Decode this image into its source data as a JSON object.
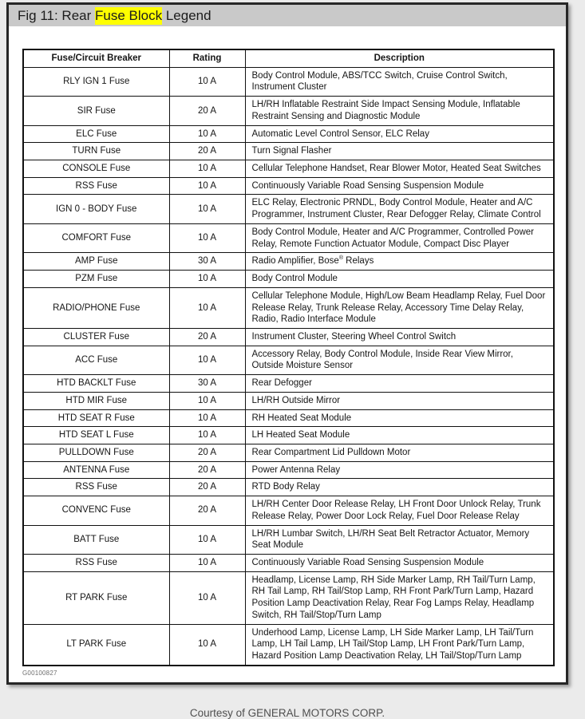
{
  "header": {
    "title_prefix": "Fig 11: Rear ",
    "title_highlight": "Fuse Block",
    "title_suffix": " Legend"
  },
  "table": {
    "columns": [
      "Fuse/Circuit Breaker",
      "Rating",
      "Description"
    ],
    "rows": [
      {
        "fuse": "RLY IGN 1 Fuse",
        "rating": "10 A",
        "description": "Body Control Module, ABS/TCC Switch, Cruise Control Switch, Instrument Cluster"
      },
      {
        "fuse": "SIR Fuse",
        "rating": "20 A",
        "description": "LH/RH Inflatable Restraint Side Impact Sensing Module, Inflatable Restraint Sensing and Diagnostic Module"
      },
      {
        "fuse": "ELC Fuse",
        "rating": "10 A",
        "description": "Automatic Level Control Sensor, ELC Relay"
      },
      {
        "fuse": "TURN Fuse",
        "rating": "20 A",
        "description": "Turn Signal Flasher"
      },
      {
        "fuse": "CONSOLE Fuse",
        "rating": "10 A",
        "description": "Cellular Telephone Handset, Rear Blower Motor, Heated Seat Switches"
      },
      {
        "fuse": "RSS Fuse",
        "rating": "10 A",
        "description": "Continuously Variable Road Sensing Suspension Module"
      },
      {
        "fuse": "IGN 0 - BODY Fuse",
        "rating": "10 A",
        "description": "ELC Relay, Electronic PRNDL, Body Control Module, Heater and A/C Programmer, Instrument Cluster, Rear Defogger Relay, Climate Control"
      },
      {
        "fuse": "COMFORT Fuse",
        "rating": "10 A",
        "description": "Body Control Module, Heater and A/C Programmer, Controlled Power Relay, Remote Function Actuator Module, Compact Disc Player"
      },
      {
        "fuse": "AMP Fuse",
        "rating": "30 A",
        "description": "Radio Amplifier, Bose® Relays"
      },
      {
        "fuse": "PZM Fuse",
        "rating": "10 A",
        "description": "Body Control Module"
      },
      {
        "fuse": "RADIO/PHONE Fuse",
        "rating": "10 A",
        "description": "Cellular Telephone Module, High/Low Beam Headlamp Relay, Fuel Door Release Relay, Trunk Release Relay, Accessory Time Delay Relay, Radio, Radio Interface Module"
      },
      {
        "fuse": "CLUSTER Fuse",
        "rating": "20 A",
        "description": "Instrument Cluster, Steering Wheel Control Switch"
      },
      {
        "fuse": "ACC Fuse",
        "rating": "10 A",
        "description": "Accessory Relay, Body Control Module, Inside Rear View Mirror, Outside Moisture Sensor"
      },
      {
        "fuse": "HTD BACKLT Fuse",
        "rating": "30 A",
        "description": "Rear Defogger"
      },
      {
        "fuse": "HTD MIR Fuse",
        "rating": "10 A",
        "description": "LH/RH Outside Mirror"
      },
      {
        "fuse": "HTD SEAT R Fuse",
        "rating": "10 A",
        "description": "RH Heated Seat Module"
      },
      {
        "fuse": "HTD SEAT L Fuse",
        "rating": "10 A",
        "description": "LH Heated Seat Module"
      },
      {
        "fuse": "PULLDOWN Fuse",
        "rating": "20 A",
        "description": "Rear Compartment Lid Pulldown Motor"
      },
      {
        "fuse": "ANTENNA Fuse",
        "rating": "20 A",
        "description": "Power Antenna Relay"
      },
      {
        "fuse": "RSS Fuse",
        "rating": "20 A",
        "description": "RTD Body Relay"
      },
      {
        "fuse": "CONVENC Fuse",
        "rating": "20 A",
        "description": "LH/RH Center Door Release Relay, LH Front Door Unlock Relay, Trunk Release Relay, Power Door Lock Relay, Fuel Door Release Relay"
      },
      {
        "fuse": "BATT Fuse",
        "rating": "10 A",
        "description": "LH/RH Lumbar Switch, LH/RH Seat Belt Retractor Actuator, Memory Seat Module"
      },
      {
        "fuse": "RSS Fuse",
        "rating": "10 A",
        "description": "Continuously Variable Road Sensing Suspension Module"
      },
      {
        "fuse": "RT PARK Fuse",
        "rating": "10 A",
        "description": "Headlamp, License Lamp, RH Side Marker Lamp, RH Tail/Turn Lamp, RH Tail Lamp, RH Tail/Stop Lamp, RH Front Park/Turn Lamp, Hazard Position Lamp Deactivation Relay, Rear Fog Lamps Relay, Headlamp Switch, RH Tail/Stop/Turn Lamp"
      },
      {
        "fuse": "LT PARK Fuse",
        "rating": "10 A",
        "description": "Underhood Lamp, License Lamp, LH Side Marker Lamp, LH Tail/Turn Lamp, LH Tail Lamp, LH Tail/Stop Lamp, LH Front Park/Turn Lamp, Hazard Position Lamp Deactivation Relay, LH Tail/Stop/Turn Lamp"
      }
    ]
  },
  "footnote": "G00100827",
  "credit": "Courtesy of GENERAL MOTORS CORP.",
  "colors": {
    "highlight": "#ffff00",
    "titlebar_bg": "#c9c9c9",
    "page_bg": "#ffffff",
    "frame": "#262626",
    "outer_bg": "#ebebeb"
  }
}
